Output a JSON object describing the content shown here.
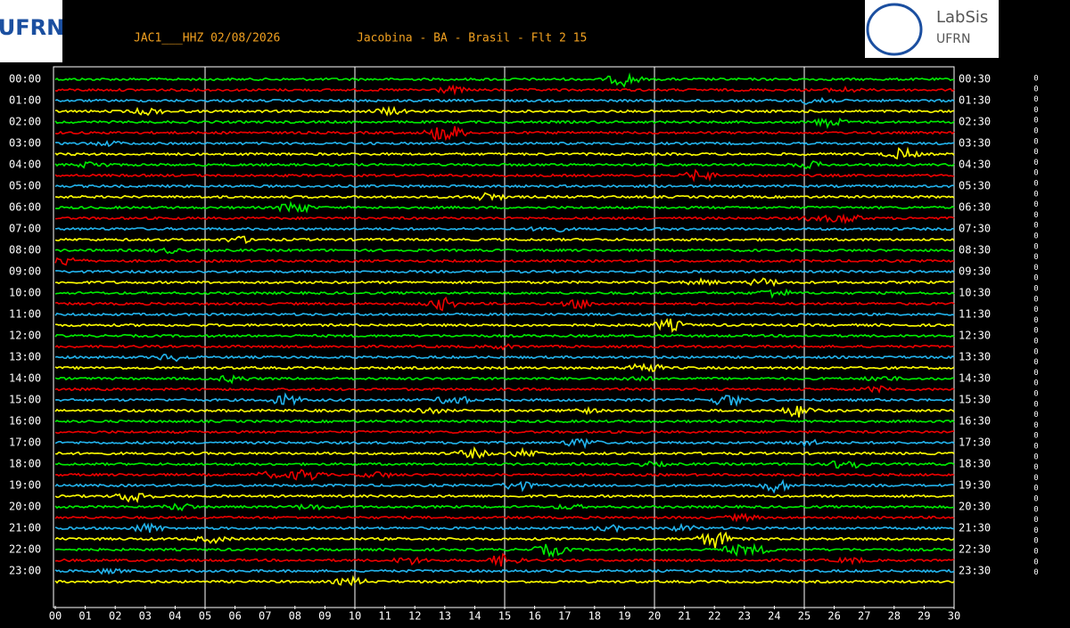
{
  "header": {
    "station": "JAC1___HHZ 02/08/2026",
    "location": "Jacobina - BA - Brasil - Flt 2 15",
    "logo_left": "UFRN",
    "logo_right_line1": "LabSis",
    "logo_right_line2": "UFRN"
  },
  "rows_left": [
    "00:00",
    "01:00",
    "02:00",
    "03:00",
    "04:00",
    "05:00",
    "06:00",
    "07:00",
    "08:00",
    "09:00",
    "10:00",
    "11:00",
    "12:00",
    "13:00",
    "14:00",
    "15:00",
    "16:00",
    "17:00",
    "18:00",
    "19:00",
    "20:00",
    "21:00",
    "22:00",
    "23:00"
  ],
  "rows_right": [
    "00:30",
    "01:30",
    "02:30",
    "03:30",
    "04:30",
    "05:30",
    "06:30",
    "07:30",
    "08:30",
    "09:30",
    "10:30",
    "11:30",
    "12:30",
    "13:30",
    "14:30",
    "15:30",
    "16:30",
    "17:30",
    "18:30",
    "19:30",
    "20:30",
    "21:30",
    "22:30",
    "23:30"
  ],
  "minutes": [
    "00",
    "01",
    "02",
    "03",
    "04",
    "05",
    "06",
    "07",
    "08",
    "09",
    "10",
    "11",
    "12",
    "13",
    "14",
    "15",
    "16",
    "17",
    "18",
    "19",
    "20",
    "21",
    "22",
    "23",
    "24",
    "25",
    "26",
    "27",
    "28",
    "29",
    "30"
  ],
  "right_markers": [
    "0",
    "0",
    "0",
    "0",
    "0",
    "0",
    "0",
    "0",
    "0",
    "0",
    "0",
    "0",
    "0",
    "0",
    "0",
    "0",
    "0",
    "0",
    "0",
    "0",
    "0",
    "0",
    "0",
    "0",
    "0",
    "0",
    "0",
    "0",
    "0",
    "0",
    "0",
    "0",
    "0",
    "0",
    "0",
    "0",
    "0",
    "0",
    "0",
    "0",
    "0",
    "0",
    "0",
    "0",
    "0",
    "0",
    "0",
    "0"
  ],
  "trace_colors": [
    "#00ee00",
    "#ee0000",
    "#22b4ee",
    "#ffff00"
  ]
}
